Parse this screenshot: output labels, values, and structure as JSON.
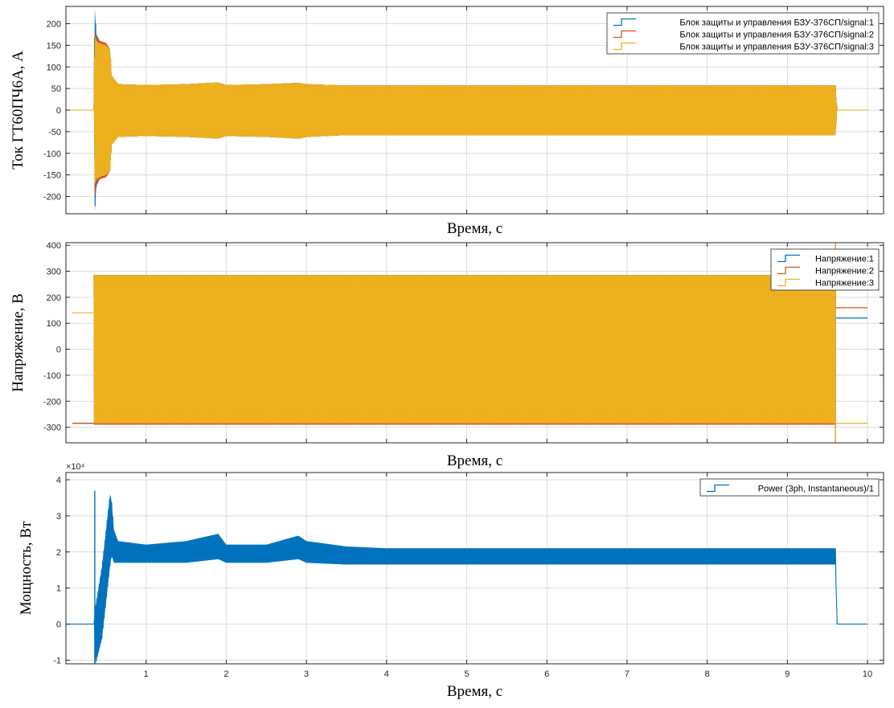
{
  "chart_data": [
    {
      "type": "line",
      "ylabel": "Ток ГТ60ПЧ6А, А",
      "xlabel": "Время, с",
      "xlim": [
        0,
        10.2
      ],
      "ylim": [
        -240,
        240
      ],
      "yticks": [
        -200,
        -150,
        -100,
        -50,
        0,
        50,
        100,
        150,
        200
      ],
      "xticks": [
        1,
        2,
        3,
        4,
        5,
        6,
        7,
        8,
        9,
        10
      ],
      "show_xtick_labels": false,
      "grid": true,
      "legend_position": "top-right",
      "series": [
        {
          "name": "Блок защиты и управления БЗУ-376СП/signal:1",
          "color": "#0072BD",
          "envelope": {
            "x": [
              0,
              0.35,
              0.36,
              0.38,
              0.42,
              0.5,
              0.55,
              0.57,
              0.65,
              1.0,
              1.5,
              1.9,
              2.0,
              2.5,
              2.9,
              3.0,
              3.5,
              4.0,
              6.0,
              8.0,
              9.6,
              9.62,
              10.0
            ],
            "upper": [
              0,
              0,
              235,
              175,
              160,
              155,
              140,
              80,
              60,
              58,
              60,
              64,
              58,
              60,
              63,
              60,
              57,
              57,
              57,
              57,
              57,
              0,
              0
            ],
            "lower": [
              0,
              0,
              -235,
              -175,
              -160,
              -155,
              -140,
              -80,
              -62,
              -60,
              -62,
              -66,
              -60,
              -62,
              -66,
              -62,
              -58,
              -58,
              -58,
              -58,
              -58,
              0,
              0
            ]
          }
        },
        {
          "name": "Блок защиты и управления БЗУ-376СП/signal:2",
          "color": "#D95319",
          "envelope": {
            "x": [
              0,
              0.35,
              0.36,
              0.38,
              0.42,
              0.5,
              0.55,
              0.57,
              0.65,
              1.0,
              1.5,
              1.9,
              2.0,
              2.5,
              2.9,
              3.0,
              3.5,
              4.0,
              6.0,
              8.0,
              9.6,
              9.62,
              10.0
            ],
            "upper": [
              0,
              0,
              180,
              170,
              160,
              155,
              140,
              80,
              60,
              58,
              60,
              64,
              58,
              60,
              63,
              60,
              57,
              57,
              57,
              57,
              57,
              0,
              0
            ],
            "lower": [
              0,
              0,
              -200,
              -170,
              -160,
              -155,
              -140,
              -80,
              -62,
              -60,
              -62,
              -66,
              -60,
              -62,
              -66,
              -62,
              -58,
              -58,
              -58,
              -58,
              -58,
              0,
              0
            ]
          }
        },
        {
          "name": "Блок защиты и управления БЗУ-376СП/signal:3",
          "color": "#EDB120",
          "envelope": {
            "x": [
              0,
              0.35,
              0.36,
              0.38,
              0.42,
              0.5,
              0.55,
              0.57,
              0.65,
              1.0,
              1.5,
              1.9,
              2.0,
              2.5,
              2.9,
              3.0,
              3.5,
              4.0,
              6.0,
              8.0,
              9.6,
              9.62,
              10.0
            ],
            "upper": [
              0,
              0,
              170,
              160,
              155,
              150,
              140,
              80,
              60,
              58,
              60,
              64,
              58,
              60,
              63,
              60,
              57,
              57,
              57,
              57,
              57,
              0,
              0
            ],
            "lower": [
              0,
              0,
              -170,
              -160,
              -155,
              -150,
              -140,
              -80,
              -62,
              -60,
              -62,
              -66,
              -60,
              -62,
              -66,
              -62,
              -58,
              -58,
              -58,
              -58,
              -58,
              0,
              0
            ]
          }
        }
      ]
    },
    {
      "type": "line",
      "ylabel": "Напряжение, В",
      "xlabel": "Время, с",
      "xlim": [
        0,
        10.2
      ],
      "ylim": [
        -360,
        410
      ],
      "yticks": [
        -300,
        -200,
        -100,
        0,
        100,
        200,
        300,
        400
      ],
      "xticks": [
        1,
        2,
        3,
        4,
        5,
        6,
        7,
        8,
        9,
        10
      ],
      "show_xtick_labels": false,
      "grid": true,
      "legend_position": "top-right",
      "series": [
        {
          "name": "Напряжение:1",
          "color": "#0072BD",
          "pre": -285,
          "post": 120,
          "envelope": {
            "x": [
              0.35,
              9.6
            ],
            "upper": [
              285,
              285
            ],
            "lower": [
              -285,
              -285
            ]
          }
        },
        {
          "name": "Напряжение:2",
          "color": "#D95319",
          "pre": -285,
          "post": 160,
          "envelope": {
            "x": [
              0.35,
              9.6
            ],
            "upper": [
              285,
              285
            ],
            "lower": [
              -290,
              -290
            ]
          }
        },
        {
          "name": "Напряжение:3",
          "color": "#EDB120",
          "pre": 140,
          "post": -285,
          "envelope": {
            "x": [
              0.35,
              9.6
            ],
            "upper": [
              285,
              285
            ],
            "lower": [
              -285,
              -285
            ]
          }
        }
      ]
    },
    {
      "type": "line",
      "ylabel": "Мощность, Вт",
      "xlabel": "Время, с",
      "exponent_label": "×10⁴",
      "xlim": [
        0,
        10.2
      ],
      "ylim": [
        -1.1,
        4.2
      ],
      "yticks": [
        -1,
        0,
        1,
        2,
        3,
        4
      ],
      "xticks": [
        1,
        2,
        3,
        4,
        5,
        6,
        7,
        8,
        9,
        10
      ],
      "show_xtick_labels": true,
      "grid": true,
      "legend_position": "top-right",
      "series": [
        {
          "name": "Power (3ph, Instantaneous)/1",
          "color": "#0072BD",
          "spike": {
            "x": 0.36,
            "max": 3.7,
            "min": -1.1
          },
          "envelope": {
            "x": [
              0,
              0.35,
              0.37,
              0.45,
              0.55,
              0.57,
              0.6,
              0.65,
              1.0,
              1.5,
              1.9,
              2.0,
              2.5,
              2.9,
              3.0,
              3.5,
              4.0,
              6.0,
              8.0,
              9.6,
              9.62,
              10.0
            ],
            "upper": [
              0,
              0,
              0.5,
              1.6,
              3.6,
              3.4,
              2.6,
              2.3,
              2.2,
              2.3,
              2.5,
              2.2,
              2.2,
              2.45,
              2.3,
              2.15,
              2.1,
              2.1,
              2.1,
              2.1,
              0,
              0
            ],
            "lower": [
              0,
              0,
              -1.1,
              -0.4,
              1.6,
              1.9,
              1.7,
              1.7,
              1.7,
              1.7,
              1.8,
              1.7,
              1.7,
              1.8,
              1.7,
              1.65,
              1.65,
              1.65,
              1.65,
              1.65,
              0,
              0
            ]
          }
        }
      ]
    }
  ]
}
